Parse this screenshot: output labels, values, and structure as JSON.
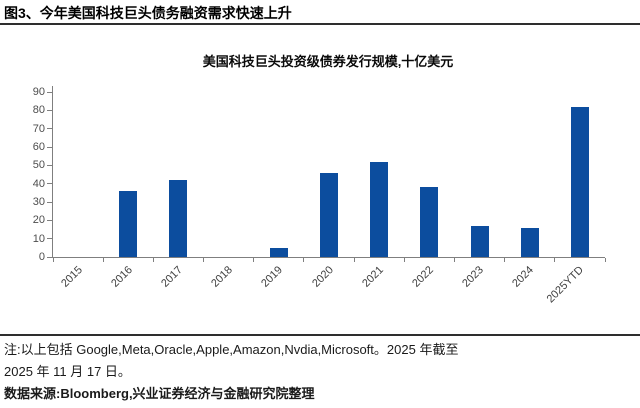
{
  "header": {
    "title": "图3、今年美国科技巨头债务融资需求快速上升"
  },
  "chart_data": {
    "type": "bar",
    "title": "美国科技巨头投资级债券发行规模,十亿美元",
    "categories": [
      "2015",
      "2016",
      "2017",
      "2018",
      "2019",
      "2020",
      "2021",
      "2022",
      "2023",
      "2024",
      "2025YTD"
    ],
    "values": [
      0,
      36,
      42,
      0,
      5,
      46,
      52,
      38,
      17,
      16,
      82
    ],
    "xlabel": "",
    "ylabel": "",
    "ylim": [
      0,
      90
    ],
    "ytick_step": 10,
    "grid": false,
    "legend": "none",
    "bar_color": "#0C4D9E",
    "axis_color": "#7f7f7f"
  },
  "notes": {
    "line1": "注:以上包括 Google,Meta,Oracle,Apple,Amazon,Nvdia,Microsoft。2025 年截至",
    "line2": "2025 年 11 月 17 日。",
    "line3": "数据来源:Bloomberg,兴业证券经济与金融研究院整理"
  }
}
